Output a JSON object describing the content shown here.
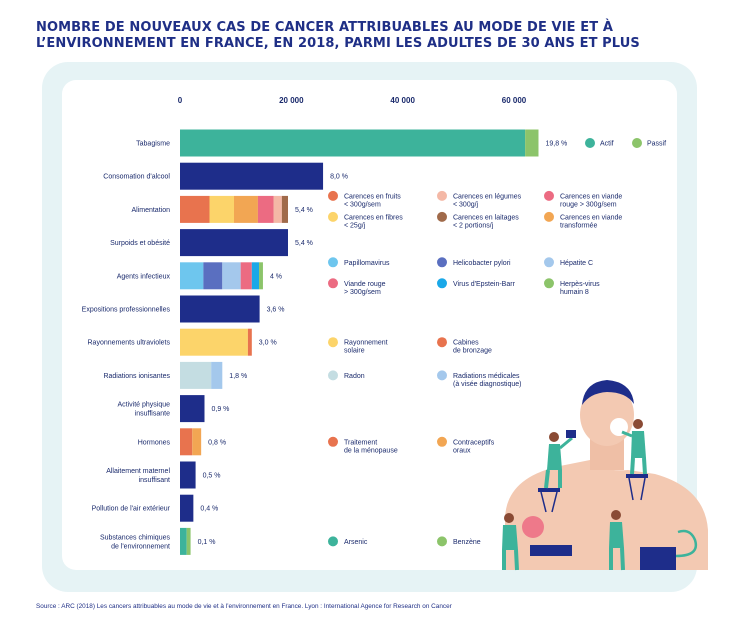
{
  "title": "NOMBRE DE NOUVEAUX CAS DE CANCER ATTRIBUABLES AU MODE DE VIE ET À L’ENVIRONNEMENT EN FRANCE, EN 2018, PARMI LES ADULTES DE 30 ANS ET PLUS",
  "source": "Source : ARC (2018) Les cancers attribuables au mode de vie et à l’environnement en France. Lyon : International Agence for Research on Cancer",
  "chart_data": {
    "type": "bar",
    "orientation": "horizontal",
    "stacked": true,
    "title": "NOMBRE DE NOUVEAUX CAS DE CANCER ATTRIBUABLES AU MODE DE VIE ET À L’ENVIRONNEMENT EN FRANCE, EN 2018, PARMI LES ADULTES DE 30 ANS ET PLUS",
    "xlim": [
      0,
      70000
    ],
    "xticks": [
      0,
      20000,
      40000,
      60000
    ],
    "xtick_labels": [
      "0",
      "20 000",
      "40 000",
      "60 000"
    ],
    "grid": false,
    "categories": [
      {
        "label": "Tabagisme",
        "pct_label": "19,8 %",
        "segments": [
          {
            "name": "Actif",
            "value": 62000,
            "color": "#3db39b"
          },
          {
            "name": "Passif",
            "value": 2400,
            "color": "#8cc46a"
          }
        ],
        "legend": [
          {
            "name": "Actif",
            "color": "#3db39b"
          },
          {
            "name": "Passif",
            "color": "#8cc46a"
          }
        ]
      },
      {
        "label": "Consomation d'alcool",
        "pct_label": "8,0 %",
        "segments": [
          {
            "name": "Consomation d'alcool",
            "value": 25700,
            "color": "#1e2d8a"
          }
        ],
        "legend": []
      },
      {
        "label": "Alimentation",
        "pct_label": "5,4 %",
        "segments": [
          {
            "name": "Carences en fruits < 300g/sem",
            "value": 5300,
            "color": "#e8734e"
          },
          {
            "name": "Carences en fibres < 25g/j",
            "value": 4400,
            "color": "#fcd46a"
          },
          {
            "name": "Carences en viande transformée",
            "value": 4300,
            "color": "#f2a653"
          },
          {
            "name": "Carences en viande rouge > 300g/sem",
            "value": 2800,
            "color": "#ec6b82"
          },
          {
            "name": "Carences en légumes < 300g/j",
            "value": 1500,
            "color": "#f4b8a6"
          },
          {
            "name": "Carences en laitages < 2 portions/j",
            "value": 1100,
            "color": "#a06a4a"
          }
        ],
        "legend": [
          {
            "name": "Carences en fruits\n< 300g/sem",
            "color": "#e8734e"
          },
          {
            "name": "Carences en légumes\n< 300g/j",
            "color": "#f4b8a6"
          },
          {
            "name": "Carences en viande\nrouge > 300g/sem",
            "color": "#ec6b82"
          },
          {
            "name": "Carences en fibres\n< 25g/j",
            "color": "#fcd46a"
          },
          {
            "name": "Carences en laitages\n< 2 portions/j",
            "color": "#a06a4a"
          },
          {
            "name": "Carences en viande\ntransformée",
            "color": "#f2a653"
          }
        ]
      },
      {
        "label": "Surpoids et obésité",
        "pct_label": "5,4 %",
        "segments": [
          {
            "name": "Surpoids et obésité",
            "value": 19400,
            "color": "#1e2d8a"
          }
        ],
        "legend": []
      },
      {
        "label": "Agents infectieux",
        "pct_label": "4 %",
        "segments": [
          {
            "name": "Papillomavirus",
            "value": 4200,
            "color": "#6ec6ee"
          },
          {
            "name": "Helicobacter pylori",
            "value": 3400,
            "color": "#5a6fc0"
          },
          {
            "name": "Hépatite C",
            "value": 3300,
            "color": "#a4c8ec"
          },
          {
            "name": "Viande rouge > 300g/sem",
            "value": 2000,
            "color": "#ec6b82"
          },
          {
            "name": "Virus d'Epstein-Barr",
            "value": 1300,
            "color": "#1aa8e8"
          },
          {
            "name": "Herpès-virus humain 8",
            "value": 700,
            "color": "#8cc46a"
          }
        ],
        "legend": [
          {
            "name": "Papillomavirus",
            "color": "#6ec6ee"
          },
          {
            "name": "Helicobacter pylori",
            "color": "#5a6fc0"
          },
          {
            "name": "Hépatite C",
            "color": "#a4c8ec"
          },
          {
            "name": "Viande rouge\n> 300g/sem",
            "color": "#ec6b82"
          },
          {
            "name": "Virus d'Epstein-Barr",
            "color": "#1aa8e8"
          },
          {
            "name": "Herpès-virus\nhumain 8",
            "color": "#8cc46a"
          }
        ]
      },
      {
        "label": "Expositions professionnelles",
        "pct_label": "3,6 %",
        "segments": [
          {
            "name": "Expositions professionnelles",
            "value": 14300,
            "color": "#1e2d8a"
          }
        ],
        "legend": []
      },
      {
        "label": "Rayonnements ultraviolets",
        "pct_label": "3,0 %",
        "segments": [
          {
            "name": "Rayonnement solaire",
            "value": 12200,
            "color": "#fcd46a"
          },
          {
            "name": "Cabines de bronzage",
            "value": 700,
            "color": "#e8734e"
          }
        ],
        "legend": [
          {
            "name": "Rayonnement\nsolaire",
            "color": "#fcd46a"
          },
          {
            "name": "Cabines\nde bronzage",
            "color": "#e8734e"
          }
        ]
      },
      {
        "label": "Radiations ionisantes",
        "pct_label": "1,8 %",
        "segments": [
          {
            "name": "Radon",
            "value": 5600,
            "color": "#c4dde2"
          },
          {
            "name": "Radiations médicales (à visée diagnostique)",
            "value": 2000,
            "color": "#a4c8ec"
          }
        ],
        "legend": [
          {
            "name": "Radon",
            "color": "#c4dde2"
          },
          {
            "name": "Radiations médicales\n(à visée diagnostique)",
            "color": "#a4c8ec"
          }
        ]
      },
      {
        "label": "Activité physique\ninsuffisante",
        "pct_label": "0,9 %",
        "segments": [
          {
            "name": "Activité physique insuffisante",
            "value": 4400,
            "color": "#1e2d8a"
          }
        ],
        "legend": []
      },
      {
        "label": "Hormones",
        "pct_label": "0,8 %",
        "segments": [
          {
            "name": "Traitement de la ménopause",
            "value": 2200,
            "color": "#e8734e"
          },
          {
            "name": "Contraceptifs oraux",
            "value": 1600,
            "color": "#f2a653"
          }
        ],
        "legend": [
          {
            "name": "Traitement\nde la ménopause",
            "color": "#e8734e"
          },
          {
            "name": "Contraceptifs\noraux",
            "color": "#f2a653"
          }
        ]
      },
      {
        "label": "Allaitement maternel\ninsuffisant",
        "pct_label": "0,5 %",
        "segments": [
          {
            "name": "Allaitement maternel insuffisant",
            "value": 2800,
            "color": "#1e2d8a"
          }
        ],
        "legend": []
      },
      {
        "label": "Pollution de l'air extérieur",
        "pct_label": "0,4 %",
        "segments": [
          {
            "name": "Pollution de l'air extérieur",
            "value": 2400,
            "color": "#1e2d8a"
          }
        ],
        "legend": []
      },
      {
        "label": "Substances chimiques\nde l'environnement",
        "pct_label": "0,1 %",
        "segments": [
          {
            "name": "Arsenic",
            "value": 1200,
            "color": "#3db39b"
          },
          {
            "name": "Benzène",
            "value": 700,
            "color": "#8cc46a"
          }
        ],
        "legend": [
          {
            "name": "Arsenic",
            "color": "#3db39b"
          },
          {
            "name": "Benzène",
            "color": "#8cc46a"
          }
        ]
      }
    ]
  }
}
